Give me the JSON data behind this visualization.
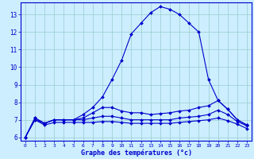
{
  "xlabel": "Graphe des températures (°c)",
  "background_color": "#cceeff",
  "grid_color": "#99cccc",
  "line_color": "#0000cc",
  "x_hours": [
    0,
    1,
    2,
    3,
    4,
    5,
    6,
    7,
    8,
    9,
    10,
    11,
    12,
    13,
    14,
    15,
    16,
    17,
    18,
    19,
    20,
    21,
    22,
    23
  ],
  "temp_line": [
    6.0,
    7.1,
    6.8,
    7.0,
    7.0,
    7.0,
    7.3,
    7.7,
    8.3,
    9.3,
    10.4,
    11.9,
    12.5,
    13.1,
    13.45,
    13.3,
    13.0,
    12.5,
    12.0,
    9.3,
    8.1,
    7.6,
    7.0,
    6.7
  ],
  "dew_line": [
    6.0,
    7.1,
    6.8,
    7.0,
    7.0,
    7.0,
    7.1,
    7.4,
    7.7,
    7.7,
    7.5,
    7.4,
    7.4,
    7.3,
    7.35,
    7.4,
    7.5,
    7.55,
    7.7,
    7.8,
    8.1,
    7.6,
    7.0,
    6.7
  ],
  "humid_line": [
    6.0,
    7.0,
    6.8,
    7.0,
    7.0,
    7.0,
    7.0,
    7.1,
    7.2,
    7.2,
    7.1,
    7.0,
    7.0,
    7.0,
    7.0,
    7.0,
    7.1,
    7.15,
    7.2,
    7.3,
    7.55,
    7.3,
    6.9,
    6.65
  ],
  "wind_line": [
    6.0,
    7.0,
    6.7,
    6.85,
    6.85,
    6.85,
    6.85,
    6.85,
    6.9,
    6.9,
    6.85,
    6.8,
    6.8,
    6.8,
    6.8,
    6.8,
    6.85,
    6.9,
    6.95,
    7.0,
    7.1,
    6.95,
    6.75,
    6.5
  ],
  "ylim": [
    5.8,
    13.7
  ],
  "yticks": [
    6,
    7,
    8,
    9,
    10,
    11,
    12,
    13
  ],
  "markersize": 2.0,
  "linewidth": 0.8
}
